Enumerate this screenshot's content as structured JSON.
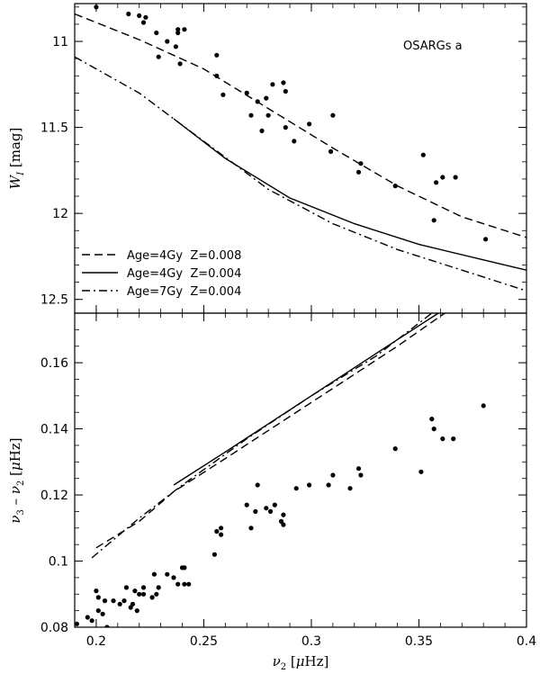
{
  "chart_data": [
    {
      "type": "scatter",
      "panel": "top",
      "title": "",
      "annotation": "OSARGs a",
      "xlabel": "",
      "ylabel": "W_I [mag]",
      "ylabel_main": "W",
      "ylabel_sub": "I",
      "ylabel_unit": "[mag]",
      "xlim": [
        0.19,
        0.4
      ],
      "ylim": [
        10.78,
        12.58
      ],
      "y_inverted": true,
      "yticks": [
        11,
        11.5,
        12,
        12.5
      ],
      "ytick_labels": [
        "11",
        "11.5",
        "12",
        "12.5"
      ],
      "legend_position": "bottom-left",
      "points": [
        [
          0.2,
          10.8
        ],
        [
          0.215,
          10.84
        ],
        [
          0.22,
          10.85
        ],
        [
          0.223,
          10.86
        ],
        [
          0.222,
          10.89
        ],
        [
          0.238,
          10.93
        ],
        [
          0.238,
          10.95
        ],
        [
          0.241,
          10.93
        ],
        [
          0.228,
          10.95
        ],
        [
          0.233,
          11.0
        ],
        [
          0.237,
          11.03
        ],
        [
          0.229,
          11.09
        ],
        [
          0.239,
          11.13
        ],
        [
          0.256,
          11.08
        ],
        [
          0.256,
          11.2
        ],
        [
          0.259,
          11.31
        ],
        [
          0.27,
          11.3
        ],
        [
          0.282,
          11.25
        ],
        [
          0.287,
          11.24
        ],
        [
          0.288,
          11.29
        ],
        [
          0.275,
          11.35
        ],
        [
          0.279,
          11.33
        ],
        [
          0.272,
          11.43
        ],
        [
          0.28,
          11.43
        ],
        [
          0.277,
          11.52
        ],
        [
          0.288,
          11.5
        ],
        [
          0.292,
          11.58
        ],
        [
          0.299,
          11.48
        ],
        [
          0.31,
          11.43
        ],
        [
          0.309,
          11.64
        ],
        [
          0.323,
          11.71
        ],
        [
          0.322,
          11.76
        ],
        [
          0.339,
          11.84
        ],
        [
          0.352,
          11.66
        ],
        [
          0.358,
          11.82
        ],
        [
          0.361,
          11.79
        ],
        [
          0.367,
          11.79
        ],
        [
          0.357,
          12.04
        ],
        [
          0.381,
          12.15
        ]
      ],
      "series": [
        {
          "name": "Age=4Gy  Z=0.008",
          "dash": "dashed",
          "x": [
            0.19,
            0.22,
            0.25,
            0.28,
            0.31,
            0.34,
            0.37,
            0.4
          ],
          "y": [
            10.84,
            10.99,
            11.16,
            11.39,
            11.62,
            11.84,
            12.02,
            12.14
          ]
        },
        {
          "name": "Age=4Gy  Z=0.004",
          "dash": "solid",
          "x": [
            0.236,
            0.26,
            0.29,
            0.32,
            0.35,
            0.38,
            0.4
          ],
          "y": [
            11.45,
            11.68,
            11.91,
            12.06,
            12.18,
            12.27,
            12.33
          ]
        },
        {
          "name": "Age=7Gy  Z=0.004",
          "dash": "dashdot",
          "x": [
            0.19,
            0.22,
            0.25,
            0.28,
            0.31,
            0.34,
            0.37,
            0.4
          ],
          "y": [
            11.09,
            11.3,
            11.58,
            11.86,
            12.06,
            12.21,
            12.33,
            12.45
          ]
        }
      ]
    },
    {
      "type": "scatter",
      "panel": "bottom",
      "title": "",
      "xlabel": "ν2 [μHz]",
      "xlabel_main": "ν",
      "xlabel_sub": "2",
      "xlabel_unit_pre": "[",
      "xlabel_unit_mu": "μ",
      "xlabel_unit_post": "Hz]",
      "ylabel": "ν3 - ν2 [μHz]",
      "ylabel_nu": "ν",
      "ylabel_sub1": "3",
      "ylabel_minus": "–",
      "ylabel_sub2": "2",
      "ylabel_unit_pre": "[",
      "ylabel_unit_mu": "μ",
      "ylabel_unit_post": "Hz]",
      "xlim": [
        0.19,
        0.4
      ],
      "ylim": [
        0.08,
        0.175
      ],
      "xticks": [
        0.2,
        0.25,
        0.3,
        0.35,
        0.4
      ],
      "xtick_labels": [
        "0.2",
        "0.25",
        "0.3",
        "0.35",
        "0.4"
      ],
      "yticks": [
        0.08,
        0.1,
        0.12,
        0.14,
        0.16
      ],
      "ytick_labels": [
        "0.08",
        "0.1",
        "0.12",
        "0.14",
        "0.16"
      ],
      "points": [
        [
          0.191,
          0.081
        ],
        [
          0.196,
          0.083
        ],
        [
          0.198,
          0.082
        ],
        [
          0.2,
          0.091
        ],
        [
          0.201,
          0.089
        ],
        [
          0.201,
          0.085
        ],
        [
          0.203,
          0.084
        ],
        [
          0.204,
          0.088
        ],
        [
          0.205,
          0.08
        ],
        [
          0.208,
          0.088
        ],
        [
          0.211,
          0.087
        ],
        [
          0.213,
          0.088
        ],
        [
          0.214,
          0.092
        ],
        [
          0.216,
          0.086
        ],
        [
          0.217,
          0.087
        ],
        [
          0.218,
          0.091
        ],
        [
          0.219,
          0.085
        ],
        [
          0.22,
          0.09
        ],
        [
          0.222,
          0.09
        ],
        [
          0.222,
          0.092
        ],
        [
          0.226,
          0.089
        ],
        [
          0.227,
          0.096
        ],
        [
          0.228,
          0.09
        ],
        [
          0.229,
          0.092
        ],
        [
          0.233,
          0.096
        ],
        [
          0.236,
          0.095
        ],
        [
          0.238,
          0.093
        ],
        [
          0.24,
          0.098
        ],
        [
          0.241,
          0.098
        ],
        [
          0.241,
          0.093
        ],
        [
          0.243,
          0.093
        ],
        [
          0.255,
          0.102
        ],
        [
          0.256,
          0.109
        ],
        [
          0.258,
          0.108
        ],
        [
          0.258,
          0.11
        ],
        [
          0.27,
          0.117
        ],
        [
          0.272,
          0.11
        ],
        [
          0.274,
          0.115
        ],
        [
          0.275,
          0.123
        ],
        [
          0.279,
          0.116
        ],
        [
          0.281,
          0.115
        ],
        [
          0.283,
          0.117
        ],
        [
          0.286,
          0.112
        ],
        [
          0.287,
          0.114
        ],
        [
          0.287,
          0.111
        ],
        [
          0.293,
          0.122
        ],
        [
          0.299,
          0.123
        ],
        [
          0.308,
          0.123
        ],
        [
          0.31,
          0.126
        ],
        [
          0.318,
          0.122
        ],
        [
          0.322,
          0.128
        ],
        [
          0.323,
          0.126
        ],
        [
          0.339,
          0.134
        ],
        [
          0.351,
          0.127
        ],
        [
          0.356,
          0.143
        ],
        [
          0.357,
          0.14
        ],
        [
          0.361,
          0.137
        ],
        [
          0.366,
          0.137
        ],
        [
          0.38,
          0.147
        ]
      ],
      "series": [
        {
          "name": "Age=4Gy  Z=0.008",
          "dash": "dashed",
          "x": [
            0.2,
            0.22,
            0.236,
            0.26,
            0.3,
            0.34,
            0.362
          ],
          "y": [
            0.104,
            0.112,
            0.121,
            0.131,
            0.148,
            0.165,
            0.175
          ]
        },
        {
          "name": "Age=4Gy  Z=0.004",
          "dash": "solid",
          "x": [
            0.236,
            0.26,
            0.3,
            0.34,
            0.359
          ],
          "y": [
            0.123,
            0.133,
            0.15,
            0.167,
            0.175
          ]
        },
        {
          "name": "Age=7Gy  Z=0.004",
          "dash": "dashdot",
          "x": [
            0.198,
            0.22,
            0.24,
            0.27,
            0.3,
            0.33,
            0.356
          ],
          "y": [
            0.101,
            0.113,
            0.123,
            0.137,
            0.15,
            0.162,
            0.175
          ]
        }
      ]
    }
  ]
}
